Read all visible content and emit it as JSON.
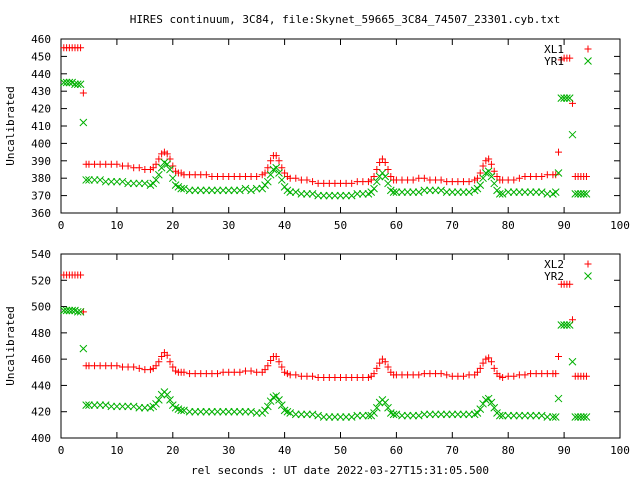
{
  "title": "HIRES continuum, 3C84, file:Skynet_59665_3C84_74507_23301.cyb.txt",
  "xlabel": "rel seconds : UT date 2022-03-27T15:31:05.500",
  "colors": {
    "red": "#ff0000",
    "green": "#00b000"
  },
  "chart_data": [
    {
      "type": "scatter",
      "ylabel": "Uncalibrated",
      "xlim": [
        0,
        100
      ],
      "ylim": [
        360,
        460
      ],
      "xticks": [
        0,
        10,
        20,
        30,
        40,
        50,
        60,
        70,
        80,
        90,
        100
      ],
      "yticks": [
        360,
        370,
        380,
        390,
        400,
        410,
        420,
        430,
        440,
        450,
        460
      ],
      "legend_position": "top-right",
      "series": [
        {
          "name": "XL1",
          "marker": "plus",
          "color": "#ff0000",
          "x": [
            0.5,
            1.0,
            1.5,
            2.0,
            2.5,
            3.0,
            3.5,
            4.0,
            4.5,
            5.0,
            6,
            7,
            8,
            9,
            10,
            11,
            12,
            13,
            14,
            15,
            16,
            16.5,
            17,
            17.5,
            18,
            18.5,
            19,
            19.5,
            20,
            20.5,
            21,
            21.5,
            22,
            23,
            24,
            25,
            26,
            27,
            28,
            29,
            30,
            31,
            32,
            33,
            34,
            35,
            36,
            36.5,
            37,
            37.5,
            38,
            38.5,
            39,
            39.5,
            40,
            40.5,
            41,
            42,
            43,
            44,
            45,
            46,
            47,
            48,
            49,
            50,
            51,
            52,
            53,
            54,
            55,
            55.5,
            56,
            56.5,
            57,
            57.5,
            58,
            58.5,
            59,
            59.5,
            60,
            61,
            62,
            63,
            64,
            65,
            66,
            67,
            68,
            69,
            70,
            71,
            72,
            73,
            74,
            74.5,
            75,
            75.5,
            76,
            76.5,
            77,
            77.5,
            78,
            78.5,
            79,
            80,
            81,
            82,
            83,
            84,
            85,
            86,
            87,
            88,
            88.5,
            89,
            89.5,
            90,
            90.5,
            91,
            91.5,
            92,
            92.5,
            93,
            93.5,
            94
          ],
          "y": [
            455,
            455,
            455,
            455,
            455,
            455,
            455,
            429,
            388,
            388,
            388,
            388,
            388,
            388,
            388,
            387,
            387,
            386,
            386,
            385,
            385,
            386,
            388,
            391,
            394,
            395,
            394,
            391,
            387,
            384,
            383,
            383,
            382,
            382,
            382,
            382,
            382,
            381,
            381,
            381,
            381,
            381,
            381,
            381,
            381,
            381,
            382,
            383,
            386,
            390,
            393,
            393,
            390,
            386,
            383,
            381,
            380,
            380,
            379,
            379,
            378,
            377,
            377,
            377,
            377,
            377,
            377,
            377,
            378,
            378,
            378,
            379,
            381,
            385,
            389,
            391,
            389,
            385,
            381,
            379,
            379,
            379,
            379,
            379,
            380,
            380,
            379,
            379,
            379,
            378,
            378,
            378,
            378,
            378,
            379,
            380,
            383,
            387,
            390,
            391,
            388,
            384,
            381,
            379,
            379,
            379,
            379,
            380,
            381,
            381,
            381,
            381,
            382,
            382,
            382,
            395,
            448,
            449,
            449,
            449,
            423,
            381,
            381,
            381,
            381,
            381
          ]
        },
        {
          "name": "YR1",
          "marker": "cross",
          "color": "#00b000",
          "x": [
            0.5,
            1.0,
            1.5,
            2.0,
            2.5,
            3.0,
            3.5,
            4.0,
            4.5,
            5.0,
            6,
            7,
            8,
            9,
            10,
            11,
            12,
            13,
            14,
            15,
            16,
            16.5,
            17,
            17.5,
            18,
            18.5,
            19,
            19.5,
            20,
            20.5,
            21,
            21.5,
            22,
            23,
            24,
            25,
            26,
            27,
            28,
            29,
            30,
            31,
            32,
            33,
            34,
            35,
            36,
            36.5,
            37,
            37.5,
            38,
            38.5,
            39,
            39.5,
            40,
            40.5,
            41,
            42,
            43,
            44,
            45,
            46,
            47,
            48,
            49,
            50,
            51,
            52,
            53,
            54,
            55,
            55.5,
            56,
            56.5,
            57,
            57.5,
            58,
            58.5,
            59,
            59.5,
            60,
            61,
            62,
            63,
            64,
            65,
            66,
            67,
            68,
            69,
            70,
            71,
            72,
            73,
            74,
            74.5,
            75,
            75.5,
            76,
            76.5,
            77,
            77.5,
            78,
            78.5,
            79,
            80,
            81,
            82,
            83,
            84,
            85,
            86,
            87,
            88,
            88.5,
            89,
            89.5,
            90,
            90.5,
            91,
            91.5,
            92,
            92.5,
            93,
            93.5,
            94
          ],
          "y": [
            435,
            435,
            435,
            435,
            434,
            434,
            434,
            412,
            379,
            379,
            379,
            379,
            378,
            378,
            378,
            378,
            377,
            377,
            377,
            377,
            376,
            377,
            379,
            382,
            386,
            389,
            388,
            385,
            380,
            376,
            375,
            374,
            374,
            373,
            373,
            373,
            373,
            373,
            373,
            373,
            373,
            373,
            373,
            374,
            373,
            374,
            374,
            376,
            378,
            382,
            385,
            386,
            383,
            379,
            375,
            373,
            372,
            372,
            371,
            371,
            371,
            370,
            370,
            370,
            370,
            370,
            370,
            370,
            371,
            371,
            371,
            372,
            374,
            378,
            381,
            383,
            381,
            377,
            373,
            372,
            372,
            372,
            372,
            372,
            372,
            373,
            373,
            373,
            373,
            372,
            372,
            372,
            372,
            372,
            373,
            374,
            376,
            380,
            383,
            384,
            381,
            377,
            373,
            371,
            371,
            372,
            372,
            372,
            372,
            372,
            372,
            372,
            371,
            371,
            372,
            383,
            426,
            426,
            426,
            426,
            405,
            371,
            371,
            371,
            371,
            371
          ]
        }
      ]
    },
    {
      "type": "scatter",
      "ylabel": "Uncalibrated",
      "xlim": [
        0,
        100
      ],
      "ylim": [
        400,
        540
      ],
      "xticks": [
        0,
        10,
        20,
        30,
        40,
        50,
        60,
        70,
        80,
        90,
        100
      ],
      "yticks": [
        400,
        420,
        440,
        460,
        480,
        500,
        520,
        540
      ],
      "legend_position": "top-right",
      "series": [
        {
          "name": "XL2",
          "marker": "plus",
          "color": "#ff0000",
          "x": [
            0.5,
            1.0,
            1.5,
            2.0,
            2.5,
            3.0,
            3.5,
            4.0,
            4.5,
            5.0,
            6,
            7,
            8,
            9,
            10,
            11,
            12,
            13,
            14,
            15,
            16,
            16.5,
            17,
            17.5,
            18,
            18.5,
            19,
            19.5,
            20,
            20.5,
            21,
            21.5,
            22,
            23,
            24,
            25,
            26,
            27,
            28,
            29,
            30,
            31,
            32,
            33,
            34,
            35,
            36,
            36.5,
            37,
            37.5,
            38,
            38.5,
            39,
            39.5,
            40,
            40.5,
            41,
            42,
            43,
            44,
            45,
            46,
            47,
            48,
            49,
            50,
            51,
            52,
            53,
            54,
            55,
            55.5,
            56,
            56.5,
            57,
            57.5,
            58,
            58.5,
            59,
            59.5,
            60,
            61,
            62,
            63,
            64,
            65,
            66,
            67,
            68,
            69,
            70,
            71,
            72,
            73,
            74,
            74.5,
            75,
            75.5,
            76,
            76.5,
            77,
            77.5,
            78,
            78.5,
            79,
            80,
            81,
            82,
            83,
            84,
            85,
            86,
            87,
            88,
            88.5,
            89,
            89.5,
            90,
            90.5,
            91,
            91.5,
            92,
            92.5,
            93,
            93.5,
            94
          ],
          "y": [
            524,
            524,
            524,
            524,
            524,
            524,
            524,
            496,
            455,
            455,
            455,
            455,
            455,
            455,
            455,
            454,
            454,
            454,
            453,
            452,
            452,
            453,
            455,
            458,
            462,
            465,
            463,
            458,
            454,
            451,
            450,
            450,
            450,
            449,
            449,
            449,
            449,
            449,
            449,
            450,
            450,
            450,
            450,
            451,
            451,
            450,
            450,
            452,
            455,
            459,
            462,
            462,
            458,
            454,
            450,
            449,
            448,
            448,
            447,
            447,
            447,
            446,
            446,
            446,
            446,
            446,
            446,
            446,
            446,
            446,
            446,
            447,
            449,
            453,
            457,
            460,
            458,
            454,
            450,
            448,
            448,
            448,
            448,
            448,
            448,
            449,
            449,
            449,
            449,
            448,
            447,
            447,
            447,
            448,
            448,
            450,
            453,
            457,
            460,
            461,
            458,
            453,
            449,
            447,
            446,
            447,
            447,
            448,
            448,
            449,
            449,
            449,
            449,
            449,
            449,
            462,
            517,
            517,
            517,
            517,
            490,
            447,
            447,
            447,
            447,
            447
          ]
        },
        {
          "name": "YR2",
          "marker": "cross",
          "color": "#00b000",
          "x": [
            0.5,
            1.0,
            1.5,
            2.0,
            2.5,
            3.0,
            3.5,
            4.0,
            4.5,
            5.0,
            6,
            7,
            8,
            9,
            10,
            11,
            12,
            13,
            14,
            15,
            16,
            16.5,
            17,
            17.5,
            18,
            18.5,
            19,
            19.5,
            20,
            20.5,
            21,
            21.5,
            22,
            23,
            24,
            25,
            26,
            27,
            28,
            29,
            30,
            31,
            32,
            33,
            34,
            35,
            36,
            36.5,
            37,
            37.5,
            38,
            38.5,
            39,
            39.5,
            40,
            40.5,
            41,
            42,
            43,
            44,
            45,
            46,
            47,
            48,
            49,
            50,
            51,
            52,
            53,
            54,
            55,
            55.5,
            56,
            56.5,
            57,
            57.5,
            58,
            58.5,
            59,
            59.5,
            60,
            61,
            62,
            63,
            64,
            65,
            66,
            67,
            68,
            69,
            70,
            71,
            72,
            73,
            74,
            74.5,
            75,
            75.5,
            76,
            76.5,
            77,
            77.5,
            78,
            78.5,
            79,
            80,
            81,
            82,
            83,
            84,
            85,
            86,
            87,
            88,
            88.5,
            89,
            89.5,
            90,
            90.5,
            91,
            91.5,
            92,
            92.5,
            93,
            93.5,
            94
          ],
          "y": [
            497,
            497,
            497,
            497,
            497,
            496,
            496,
            468,
            425,
            425,
            425,
            425,
            425,
            424,
            424,
            424,
            424,
            424,
            423,
            423,
            423,
            424,
            426,
            429,
            433,
            435,
            433,
            429,
            425,
            423,
            422,
            421,
            421,
            420,
            420,
            420,
            420,
            420,
            420,
            420,
            420,
            420,
            420,
            420,
            420,
            419,
            419,
            421,
            424,
            428,
            431,
            432,
            429,
            425,
            421,
            420,
            419,
            418,
            418,
            418,
            418,
            417,
            416,
            416,
            416,
            416,
            416,
            416,
            417,
            417,
            417,
            417,
            419,
            423,
            427,
            429,
            427,
            423,
            419,
            418,
            418,
            417,
            417,
            417,
            417,
            418,
            418,
            418,
            418,
            418,
            418,
            418,
            418,
            418,
            418,
            419,
            422,
            426,
            429,
            430,
            427,
            423,
            419,
            417,
            417,
            417,
            417,
            417,
            417,
            417,
            417,
            417,
            416,
            416,
            416,
            430,
            486,
            486,
            486,
            486,
            458,
            416,
            416,
            416,
            416,
            416
          ]
        }
      ]
    }
  ]
}
